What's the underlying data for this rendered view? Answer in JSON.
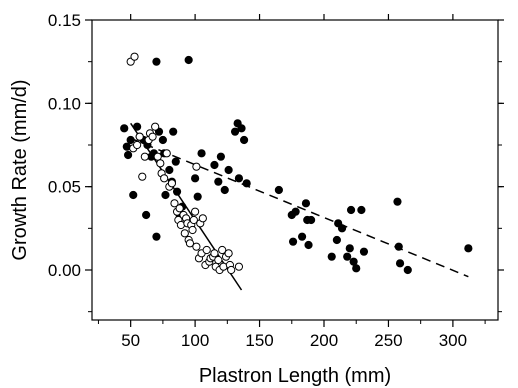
{
  "chart_data": {
    "type": "scatter",
    "xlabel": "Plastron Length (mm)",
    "ylabel": "Growth Rate (mm/d)",
    "xlim": [
      20,
      335
    ],
    "ylim": [
      -0.03,
      0.15
    ],
    "xticks": [
      50,
      100,
      150,
      200,
      250,
      300
    ],
    "yticks": [
      0.0,
      0.05,
      0.1,
      0.15
    ],
    "ytick_labels": [
      "0.00",
      "0.05",
      "0.10",
      "0.15"
    ],
    "grid": false,
    "legend": "none",
    "series": [
      {
        "marker": "filled-circle",
        "color": "#000000",
        "points": [
          [
            45,
            0.085
          ],
          [
            47,
            0.074
          ],
          [
            48,
            0.069
          ],
          [
            50,
            0.078
          ],
          [
            52,
            0.045
          ],
          [
            55,
            0.086
          ],
          [
            57,
            0.08
          ],
          [
            60,
            0.078
          ],
          [
            62,
            0.033
          ],
          [
            63,
            0.075
          ],
          [
            66,
            0.068
          ],
          [
            68,
            0.07
          ],
          [
            70,
            0.02
          ],
          [
            70,
            0.125
          ],
          [
            72,
            0.083
          ],
          [
            75,
            0.078
          ],
          [
            76,
            0.07
          ],
          [
            77,
            0.045
          ],
          [
            80,
            0.06
          ],
          [
            82,
            0.053
          ],
          [
            83,
            0.083
          ],
          [
            85,
            0.065
          ],
          [
            86,
            0.047
          ],
          [
            88,
            0.033
          ],
          [
            90,
            0.038
          ],
          [
            95,
            0.126
          ],
          [
            100,
            0.055
          ],
          [
            102,
            0.044
          ],
          [
            105,
            0.07
          ],
          [
            115,
            0.063
          ],
          [
            118,
            0.053
          ],
          [
            120,
            0.068
          ],
          [
            123,
            0.048
          ],
          [
            126,
            0.06
          ],
          [
            131,
            0.083
          ],
          [
            133,
            0.088
          ],
          [
            134,
            0.055
          ],
          [
            136,
            0.085
          ],
          [
            138,
            0.078
          ],
          [
            140,
            0.052
          ],
          [
            165,
            0.048
          ],
          [
            175,
            0.033
          ],
          [
            176,
            0.017
          ],
          [
            178,
            0.035
          ],
          [
            183,
            0.02
          ],
          [
            186,
            0.04
          ],
          [
            187,
            0.03
          ],
          [
            188,
            0.015
          ],
          [
            190,
            0.03
          ],
          [
            206,
            0.008
          ],
          [
            210,
            0.018
          ],
          [
            211,
            0.028
          ],
          [
            214,
            0.025
          ],
          [
            218,
            0.008
          ],
          [
            220,
            0.013
          ],
          [
            221,
            0.036
          ],
          [
            223,
            0.005
          ],
          [
            225,
            0.001
          ],
          [
            229,
            0.036
          ],
          [
            231,
            0.011
          ],
          [
            257,
            0.041
          ],
          [
            258,
            0.014
          ],
          [
            259,
            0.004
          ],
          [
            265,
            0.0
          ],
          [
            312,
            0.013
          ]
        ]
      },
      {
        "marker": "open-circle",
        "color": "#000000",
        "points": [
          [
            50,
            0.125
          ],
          [
            53,
            0.128
          ],
          [
            52,
            0.073
          ],
          [
            55,
            0.075
          ],
          [
            57,
            0.08
          ],
          [
            59,
            0.056
          ],
          [
            61,
            0.068
          ],
          [
            64,
            0.078
          ],
          [
            65,
            0.082
          ],
          [
            67,
            0.08
          ],
          [
            69,
            0.086
          ],
          [
            71,
            0.068
          ],
          [
            73,
            0.064
          ],
          [
            74,
            0.058
          ],
          [
            76,
            0.055
          ],
          [
            78,
            0.07
          ],
          [
            80,
            0.05
          ],
          [
            82,
            0.052
          ],
          [
            84,
            0.04
          ],
          [
            86,
            0.035
          ],
          [
            87,
            0.03
          ],
          [
            88,
            0.037
          ],
          [
            89,
            0.027
          ],
          [
            91,
            0.033
          ],
          [
            92,
            0.022
          ],
          [
            93,
            0.031
          ],
          [
            94,
            0.028
          ],
          [
            95,
            0.018
          ],
          [
            96,
            0.016
          ],
          [
            97,
            0.027
          ],
          [
            98,
            0.024
          ],
          [
            99,
            0.03
          ],
          [
            100,
            0.035
          ],
          [
            101,
            0.062
          ],
          [
            101,
            0.014
          ],
          [
            103,
            0.007
          ],
          [
            104,
            0.028
          ],
          [
            105,
            0.01
          ],
          [
            106,
            0.031
          ],
          [
            108,
            0.003
          ],
          [
            109,
            0.012
          ],
          [
            111,
            0.005
          ],
          [
            112,
            0.007
          ],
          [
            114,
            0.008
          ],
          [
            115,
            0.01
          ],
          [
            116,
            0.002
          ],
          [
            118,
            0.006
          ],
          [
            119,
            0.0
          ],
          [
            121,
            0.012
          ],
          [
            122,
            0.002
          ],
          [
            124,
            0.008
          ],
          [
            126,
            0.01
          ],
          [
            127,
            0.003
          ],
          [
            128,
            0.0
          ],
          [
            134,
            0.002
          ]
        ]
      }
    ],
    "fit_lines": [
      {
        "style": "solid",
        "x": [
          50,
          136
        ],
        "y": [
          0.088,
          -0.012
        ]
      },
      {
        "style": "dashed",
        "x": [
          50,
          312
        ],
        "y": [
          0.079,
          -0.004
        ]
      }
    ]
  }
}
